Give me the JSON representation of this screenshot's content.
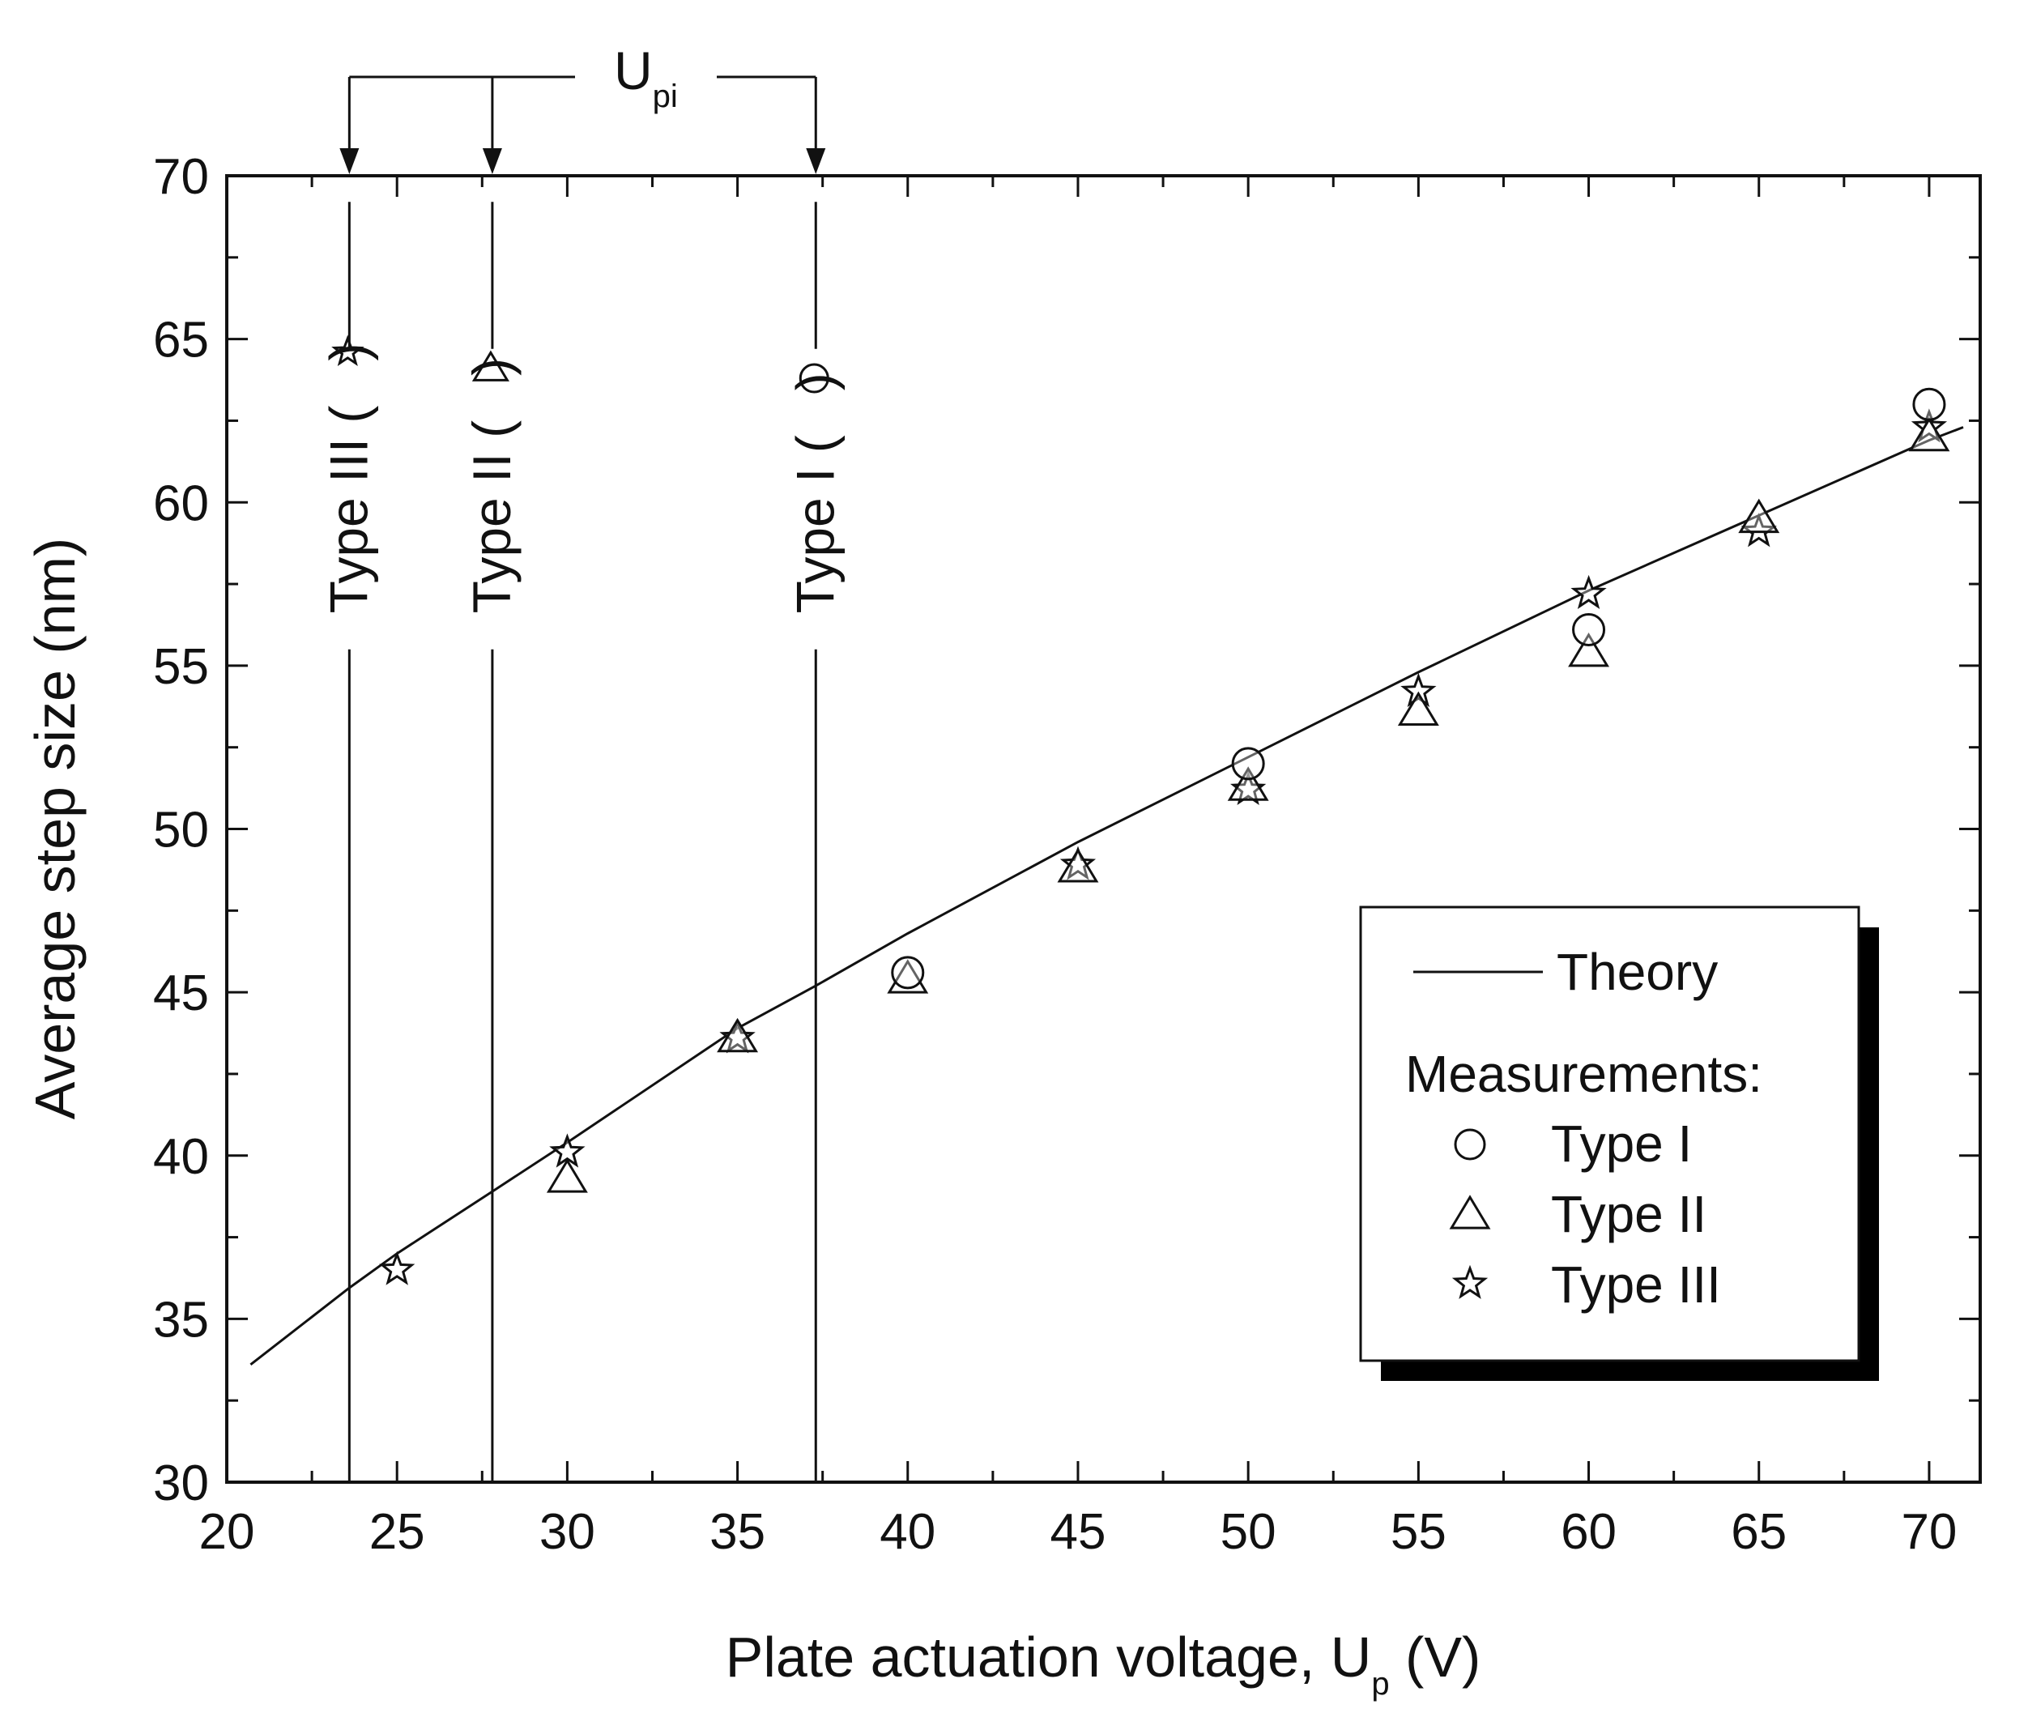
{
  "chart_data": {
    "type": "scatter",
    "title": "",
    "xlabel": "Plate actuation voltage, U",
    "xlabel_subscript": "p",
    "xlabel_unit": " (V)",
    "ylabel": "Average step size (nm)",
    "xlim": [
      20,
      71.5
    ],
    "ylim": [
      30,
      70
    ],
    "xticks": [
      20,
      25,
      30,
      35,
      40,
      45,
      50,
      55,
      60,
      65,
      70
    ],
    "yticks": [
      30,
      35,
      40,
      45,
      50,
      55,
      60,
      65,
      70
    ],
    "grid": false,
    "legend_position": "lower-right",
    "theory": {
      "name": "Theory",
      "x": [
        20.7,
        23.6,
        25,
        27.8,
        30,
        35,
        37.3,
        40,
        45,
        50,
        55,
        60,
        65,
        70,
        71
      ],
      "y": [
        33.6,
        35.95,
        37.0,
        38.9,
        40.4,
        43.9,
        45.2,
        46.8,
        49.6,
        52.2,
        54.8,
        57.3,
        59.6,
        61.9,
        62.3
      ]
    },
    "series": [
      {
        "name": "Type I",
        "marker": "circle",
        "x": [
          40,
          50,
          60,
          70
        ],
        "y": [
          45.6,
          52.0,
          56.1,
          63.0
        ]
      },
      {
        "name": "Type II",
        "marker": "triangle",
        "x": [
          30,
          35,
          40,
          45,
          50,
          55,
          60,
          65,
          70
        ],
        "y": [
          39.3,
          43.6,
          45.4,
          48.8,
          51.3,
          53.6,
          55.4,
          59.5,
          62.0
        ]
      },
      {
        "name": "Type III",
        "marker": "star",
        "x": [
          25,
          30,
          35,
          45,
          50,
          55,
          60,
          65,
          70
        ],
        "y": [
          36.5,
          40.1,
          43.6,
          48.9,
          51.2,
          54.2,
          57.2,
          59.1,
          62.3
        ]
      }
    ],
    "pull_in": {
      "label": "U",
      "label_subscript": "pi",
      "lines": [
        {
          "x": 23.6,
          "type": "Type III",
          "label": "Type III (",
          "label_end": ")",
          "marker": "star"
        },
        {
          "x": 27.8,
          "type": "Type II",
          "label": "Type II (",
          "label_end": ")",
          "marker": "triangle"
        },
        {
          "x": 37.3,
          "type": "Type I",
          "label": "Type I (",
          "label_end": ")",
          "marker": "circle"
        }
      ]
    },
    "legend": {
      "theory_label": "Theory",
      "measurements_label": "Measurements:",
      "entries": [
        "Type I",
        "Type II",
        "Type III"
      ]
    }
  }
}
